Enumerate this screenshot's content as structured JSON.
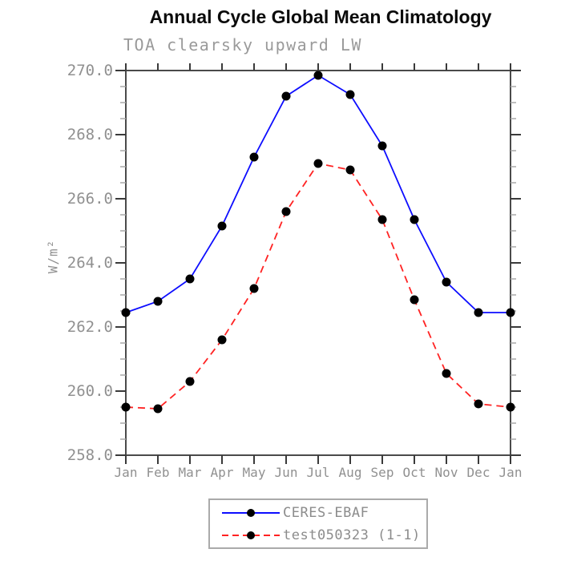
{
  "title": "Annual Cycle Global Mean Climatology",
  "subtitle": "TOA clearsky upward LW",
  "colors": {
    "frame": "#4a4a4a",
    "major_tick": "#3a3a3a",
    "minor_tick": "#a8a8a8",
    "tick_label": "#909090",
    "marker": "#000000",
    "ceres_blue": "#0d0dff",
    "test_red": "#ff2222",
    "legend_border": "#aaaaaa",
    "legend_text": "#8c8c8c"
  },
  "chart_data": {
    "type": "line",
    "title": "Annual Cycle Global Mean Climatology",
    "subtitle": "TOA clearsky upward LW",
    "xlabel": "",
    "ylabel": "W/m²",
    "categories": [
      "Jan",
      "Feb",
      "Mar",
      "Apr",
      "May",
      "Jun",
      "Jul",
      "Aug",
      "Sep",
      "Oct",
      "Nov",
      "Dec",
      "Jan"
    ],
    "ylim": [
      258.0,
      270.0
    ],
    "ytick_major": 2.0,
    "ytick_minor": 0.5,
    "grid": false,
    "legend_position": "bottom-center",
    "series": [
      {
        "name": "CERES-EBAF",
        "color": "#0d0dff",
        "line": "solid",
        "marker": "circle",
        "values": [
          262.45,
          262.8,
          263.5,
          265.15,
          267.3,
          269.2,
          269.85,
          269.25,
          267.65,
          265.35,
          263.4,
          262.45,
          262.45
        ]
      },
      {
        "name": "test050323 (1-1)",
        "color": "#ff2222",
        "line": "dashed",
        "marker": "circle",
        "values": [
          259.5,
          259.45,
          260.3,
          261.6,
          263.2,
          265.6,
          267.1,
          266.9,
          265.35,
          262.85,
          260.55,
          259.6,
          259.5
        ]
      }
    ]
  }
}
